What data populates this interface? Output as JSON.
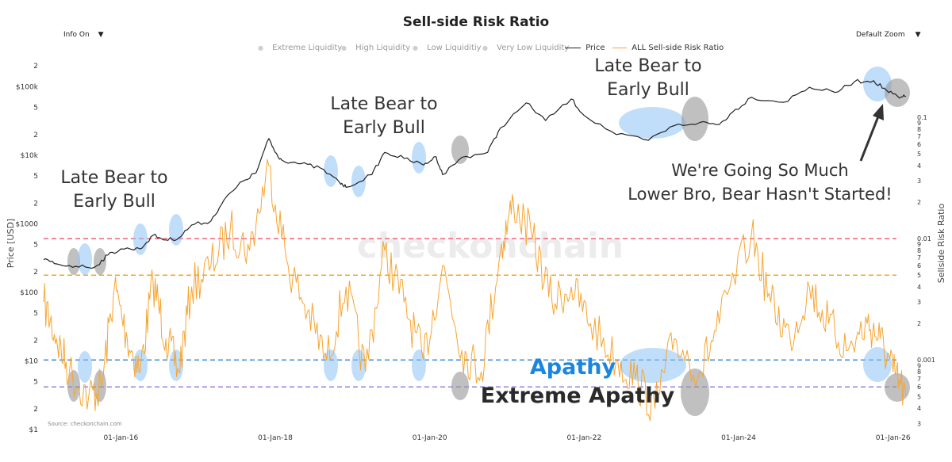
{
  "header": {
    "info_label": "Info On",
    "info_caret": "▼",
    "zoom_label": "Default Zoom",
    "zoom_caret": "▼"
  },
  "chart_data": {
    "type": "line",
    "title": "Sell-side Risk Ratio",
    "source": "Source: checkonchain.com",
    "watermark": "checkonchain",
    "legend": [
      {
        "label": "Extreme Liquidity",
        "active": false,
        "marker": "dot"
      },
      {
        "label": "High Liquidity",
        "active": false,
        "marker": "dot"
      },
      {
        "label": "Low Liquiditiy",
        "active": false,
        "marker": "dot"
      },
      {
        "label": "Very Low Liquidity",
        "active": false,
        "marker": "dot"
      },
      {
        "label": "Price",
        "active": true,
        "marker": "line",
        "color": "#222222"
      },
      {
        "label": "ALL Sell-side Risk Ratio",
        "active": true,
        "marker": "line",
        "color": "#f7a531"
      }
    ],
    "x_axis": {
      "ticks": [
        "01-Jan-16",
        "01-Jan-18",
        "01-Jan-20",
        "01-Jan-22",
        "01-Jan-24",
        "01-Jan-26"
      ],
      "range": [
        "2015-01",
        "2026-04"
      ]
    },
    "y_left": {
      "label": "Price [USD]",
      "scale": "log",
      "range": [
        1,
        300000
      ],
      "ticks": [
        {
          "v": 1,
          "t": "$1"
        },
        {
          "v": 2,
          "t": "2"
        },
        {
          "v": 5,
          "t": "5"
        },
        {
          "v": 10,
          "t": "$10"
        },
        {
          "v": 20,
          "t": "2"
        },
        {
          "v": 50,
          "t": "5"
        },
        {
          "v": 100,
          "t": "$100"
        },
        {
          "v": 200,
          "t": "2"
        },
        {
          "v": 500,
          "t": "5"
        },
        {
          "v": 1000,
          "t": "$1000"
        },
        {
          "v": 2000,
          "t": "2"
        },
        {
          "v": 5000,
          "t": "5"
        },
        {
          "v": 10000,
          "t": "$10k"
        },
        {
          "v": 20000,
          "t": "2"
        },
        {
          "v": 50000,
          "t": "5"
        },
        {
          "v": 100000,
          "t": "$100k"
        },
        {
          "v": 200000,
          "t": "2"
        }
      ]
    },
    "y_right": {
      "label": "Sellside Risk Ratio",
      "scale": "log",
      "range": [
        0.00032,
        0.2
      ],
      "ticks": [
        {
          "v": 0.0003,
          "t": "3"
        },
        {
          "v": 0.0004,
          "t": "4"
        },
        {
          "v": 0.0005,
          "t": "5"
        },
        {
          "v": 0.0006,
          "t": "6"
        },
        {
          "v": 0.0007,
          "t": "7"
        },
        {
          "v": 0.0008,
          "t": "8"
        },
        {
          "v": 0.0009,
          "t": "9"
        },
        {
          "v": 0.001,
          "t": "0.001"
        },
        {
          "v": 0.002,
          "t": "2"
        },
        {
          "v": 0.003,
          "t": "3"
        },
        {
          "v": 0.004,
          "t": "4"
        },
        {
          "v": 0.005,
          "t": "5"
        },
        {
          "v": 0.006,
          "t": "6"
        },
        {
          "v": 0.007,
          "t": "7"
        },
        {
          "v": 0.008,
          "t": "8"
        },
        {
          "v": 0.009,
          "t": "9"
        },
        {
          "v": 0.01,
          "t": "0.01"
        },
        {
          "v": 0.02,
          "t": "2"
        },
        {
          "v": 0.03,
          "t": "3"
        },
        {
          "v": 0.04,
          "t": "4"
        },
        {
          "v": 0.05,
          "t": "5"
        },
        {
          "v": 0.06,
          "t": "6"
        },
        {
          "v": 0.07,
          "t": "7"
        },
        {
          "v": 0.08,
          "t": "8"
        },
        {
          "v": 0.09,
          "t": "9"
        },
        {
          "v": 0.1,
          "t": "0.1"
        }
      ]
    },
    "thresholds": [
      {
        "value": 0.01,
        "color": "#f4607d"
      },
      {
        "value": 0.005,
        "color": "#f5a623"
      },
      {
        "value": 0.001,
        "color": "#3d8fd6"
      },
      {
        "value": 0.0006,
        "color": "#9b7fe0"
      }
    ],
    "series": [
      {
        "name": "Price",
        "axis": "left",
        "color": "#222222",
        "points": [
          [
            "2015-01",
            300
          ],
          [
            "2015-03",
            260
          ],
          [
            "2015-06",
            240
          ],
          [
            "2015-09",
            235
          ],
          [
            "2015-11",
            350
          ],
          [
            "2016-01",
            430
          ],
          [
            "2016-04",
            430
          ],
          [
            "2016-06",
            680
          ],
          [
            "2016-08",
            580
          ],
          [
            "2016-10",
            620
          ],
          [
            "2016-12",
            960
          ],
          [
            "2017-03",
            1100
          ],
          [
            "2017-05",
            2200
          ],
          [
            "2017-08",
            4200
          ],
          [
            "2017-10",
            5500
          ],
          [
            "2017-12",
            17500
          ],
          [
            "2018-01",
            11000
          ],
          [
            "2018-02",
            8500
          ],
          [
            "2018-05",
            7500
          ],
          [
            "2018-08",
            6500
          ],
          [
            "2018-11",
            4000
          ],
          [
            "2018-12",
            3400
          ],
          [
            "2019-04",
            5200
          ],
          [
            "2019-06",
            11000
          ],
          [
            "2019-09",
            9000
          ],
          [
            "2019-12",
            7200
          ],
          [
            "2020-02",
            9500
          ],
          [
            "2020-03",
            5200
          ],
          [
            "2020-06",
            9300
          ],
          [
            "2020-10",
            11000
          ],
          [
            "2020-12",
            25000
          ],
          [
            "2021-04",
            58000
          ],
          [
            "2021-07",
            32000
          ],
          [
            "2021-11",
            66000
          ],
          [
            "2022-01",
            38000
          ],
          [
            "2022-06",
            20000
          ],
          [
            "2022-11",
            16500
          ],
          [
            "2023-03",
            27000
          ],
          [
            "2023-07",
            30000
          ],
          [
            "2023-10",
            28000
          ],
          [
            "2023-12",
            42000
          ],
          [
            "2024-03",
            70000
          ],
          [
            "2024-08",
            59000
          ],
          [
            "2024-12",
            98000
          ],
          [
            "2025-04",
            82000
          ],
          [
            "2025-07",
            118000
          ],
          [
            "2025-10",
            122000
          ],
          [
            "2025-12",
            88000
          ],
          [
            "2026-02",
            68000
          ],
          [
            "2026-03",
            72000
          ]
        ]
      },
      {
        "name": "ALL Sell-side Risk Ratio",
        "axis": "right",
        "color": "#f7a531",
        "points": [
          [
            "2015-01",
            0.003
          ],
          [
            "2015-03",
            0.0015
          ],
          [
            "2015-05",
            0.0008
          ],
          [
            "2015-08",
            0.0005
          ],
          [
            "2015-10",
            0.0006
          ],
          [
            "2015-12",
            0.004
          ],
          [
            "2016-02",
            0.0015
          ],
          [
            "2016-04",
            0.0008
          ],
          [
            "2016-06",
            0.0045
          ],
          [
            "2016-08",
            0.0015
          ],
          [
            "2016-10",
            0.0008
          ],
          [
            "2016-12",
            0.004
          ],
          [
            "2017-03",
            0.006
          ],
          [
            "2017-06",
            0.012
          ],
          [
            "2017-09",
            0.008
          ],
          [
            "2017-12",
            0.04
          ],
          [
            "2018-03",
            0.006
          ],
          [
            "2018-06",
            0.0025
          ],
          [
            "2018-09",
            0.001
          ],
          [
            "2018-12",
            0.004
          ],
          [
            "2019-03",
            0.0008
          ],
          [
            "2019-06",
            0.008
          ],
          [
            "2019-09",
            0.003
          ],
          [
            "2019-12",
            0.001
          ],
          [
            "2020-03",
            0.006
          ],
          [
            "2020-06",
            0.0012
          ],
          [
            "2020-09",
            0.0008
          ],
          [
            "2020-12",
            0.008
          ],
          [
            "2021-02",
            0.02
          ],
          [
            "2021-05",
            0.01
          ],
          [
            "2021-08",
            0.003
          ],
          [
            "2021-11",
            0.004
          ],
          [
            "2022-02",
            0.002
          ],
          [
            "2022-06",
            0.001
          ],
          [
            "2022-09",
            0.0007
          ],
          [
            "2022-12",
            0.0004
          ],
          [
            "2023-03",
            0.0015
          ],
          [
            "2023-07",
            0.0008
          ],
          [
            "2023-10",
            0.002
          ],
          [
            "2024-03",
            0.011
          ],
          [
            "2024-06",
            0.003
          ],
          [
            "2024-09",
            0.0015
          ],
          [
            "2024-12",
            0.004
          ],
          [
            "2025-03",
            0.002
          ],
          [
            "2025-06",
            0.0012
          ],
          [
            "2025-09",
            0.002
          ],
          [
            "2025-11",
            0.0015
          ],
          [
            "2026-01",
            0.0008
          ],
          [
            "2026-03",
            0.0005
          ]
        ]
      }
    ],
    "annotations": {
      "late_bear_1": [
        "Late Bear to",
        "Early Bull"
      ],
      "late_bear_2": [
        "Late Bear to",
        "Early Bull"
      ],
      "late_bear_3": [
        "Late Bear to",
        "Early Bull"
      ],
      "callout": [
        "We're Going So Much",
        "Lower Bro, Bear Hasn't Started!"
      ],
      "apathy": "Apathy",
      "extreme_apathy": "Extreme Apathy"
    }
  }
}
